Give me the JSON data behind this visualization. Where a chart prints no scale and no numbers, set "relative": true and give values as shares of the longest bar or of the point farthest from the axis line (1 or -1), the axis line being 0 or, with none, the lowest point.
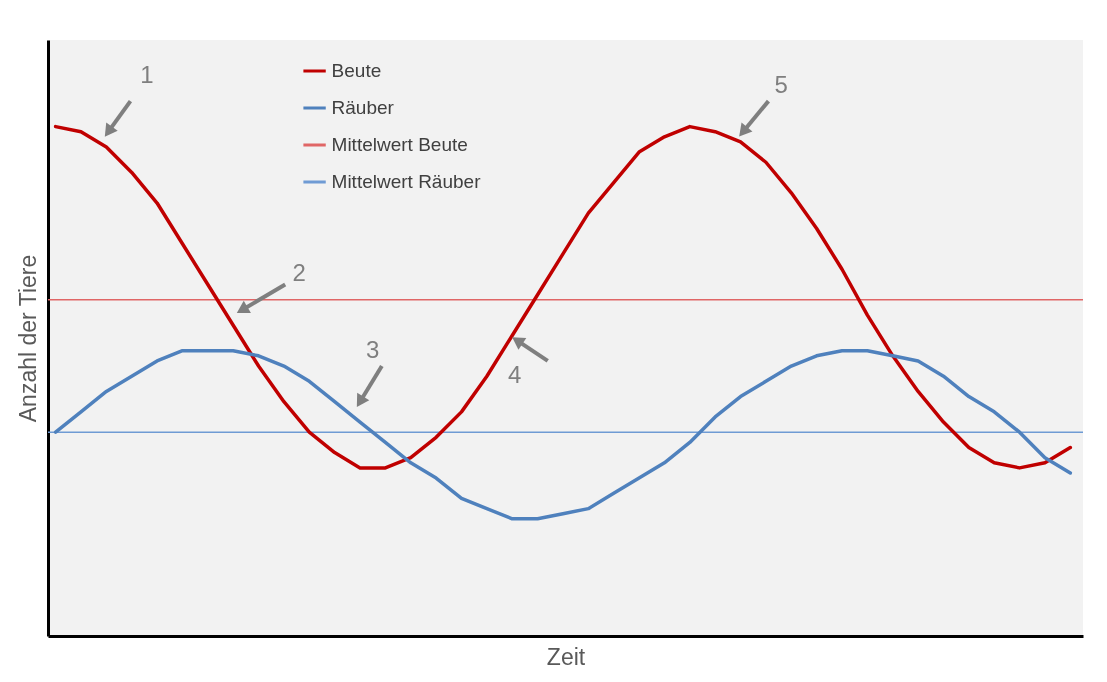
{
  "chart_data": {
    "type": "line",
    "xlabel": "Zeit",
    "ylabel": "Anzahl der Tiere",
    "relative": true,
    "legend": "top",
    "categories": [
      null,
      null,
      null,
      null,
      null,
      null,
      null,
      null,
      null,
      null,
      null,
      null,
      null,
      null,
      null,
      null,
      null,
      null,
      null,
      null,
      null,
      null,
      null,
      null,
      null,
      null,
      null,
      null,
      null,
      null,
      null,
      null,
      null,
      null,
      null,
      null,
      null,
      null,
      null,
      null,
      null
    ],
    "series": [
      {
        "name": "Beute",
        "color": "#c00000",
        "values": [
          1.0,
          0.99,
          0.96,
          0.91,
          0.85,
          0.77,
          0.69,
          0.61,
          0.53,
          0.46,
          0.4,
          0.36,
          0.33,
          0.33,
          0.35,
          0.39,
          0.44,
          0.51,
          0.59,
          0.67,
          0.75,
          0.83,
          0.89,
          0.95,
          0.98,
          1.0,
          0.99,
          0.97,
          0.93,
          0.87,
          0.8,
          0.72,
          0.63,
          0.55,
          0.48,
          0.42,
          0.37,
          0.34,
          0.33,
          0.34,
          0.37
        ]
      },
      {
        "name": "Räuber",
        "color": "#4f81bd",
        "values": [
          0.4,
          0.44,
          0.48,
          0.51,
          0.54,
          0.56,
          0.56,
          0.56,
          0.55,
          0.53,
          0.5,
          0.46,
          0.42,
          0.38,
          0.34,
          0.31,
          0.27,
          0.25,
          0.23,
          0.23,
          0.24,
          0.25,
          0.28,
          0.31,
          0.34,
          0.38,
          0.43,
          0.47,
          0.5,
          0.53,
          0.55,
          0.56,
          0.56,
          0.55,
          0.54,
          0.51,
          0.47,
          0.44,
          0.4,
          0.35,
          0.32
        ]
      }
    ],
    "ref_lines": [
      {
        "axis": "y",
        "value": 0.66,
        "label": "Mittelwert Beute",
        "color": "#e06666"
      },
      {
        "axis": "y",
        "value": 0.4,
        "label": "Mittelwert Räuber",
        "color": "#6f9bd4"
      }
    ],
    "annotations": [
      "1",
      "2",
      "3",
      "4",
      "5"
    ]
  }
}
